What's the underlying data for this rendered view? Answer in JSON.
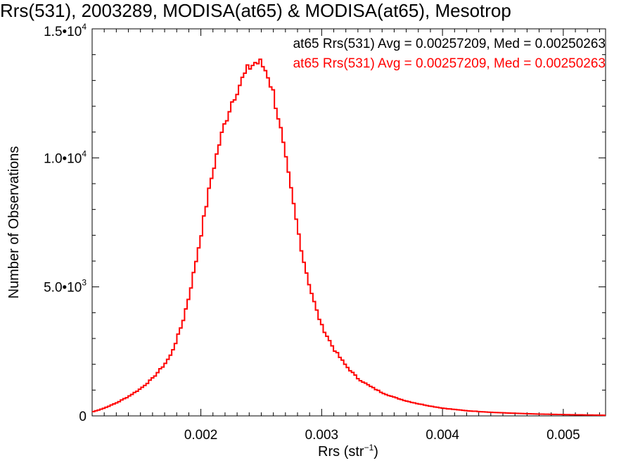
{
  "chart_data": {
    "type": "histogram-step",
    "title": "Rrs(531), 2003289, MODISA(at65) & MODISA(at65), Mesotrop",
    "xlabel": "Rrs (str",
    "xlabel_exp": "−1",
    "xlabel_suffix": ")",
    "ylabel": "Number of Observations",
    "xlim": [
      0.0011,
      0.00535
    ],
    "ylim": [
      0,
      15000
    ],
    "x_ticks": [
      {
        "value": 0.002,
        "label": "0.002"
      },
      {
        "value": 0.003,
        "label": "0.003"
      },
      {
        "value": 0.004,
        "label": "0.004"
      },
      {
        "value": 0.005,
        "label": "0.005"
      }
    ],
    "y_ticks": [
      {
        "value": 0,
        "mant": "0",
        "exp": ""
      },
      {
        "value": 5000,
        "mant": "5.0•10",
        "exp": "3"
      },
      {
        "value": 10000,
        "mant": "1.0•10",
        "exp": "4"
      },
      {
        "value": 15000,
        "mant": "1.5•10",
        "exp": "4"
      }
    ],
    "legend_position": "top-right",
    "series": [
      {
        "name": "at65 Rrs(531) Avg = 0.00257209, Med = 0.00250263",
        "color": "#000000"
      },
      {
        "name": "at65 Rrs(531) Avg = 0.00257209, Med = 0.00250263",
        "color": "#ff0000"
      }
    ],
    "x": [
      0.0011,
      0.0012,
      0.0013,
      0.0014,
      0.0015,
      0.0016,
      0.0017,
      0.00175,
      0.0018,
      0.00185,
      0.0019,
      0.00195,
      0.002,
      0.00205,
      0.0021,
      0.00215,
      0.0022,
      0.00225,
      0.0023,
      0.00235,
      0.0024,
      0.00245,
      0.0025,
      0.00255,
      0.0026,
      0.00265,
      0.0027,
      0.00275,
      0.0028,
      0.00285,
      0.0029,
      0.00295,
      0.003,
      0.0031,
      0.0032,
      0.0033,
      0.0034,
      0.0035,
      0.0036,
      0.0037,
      0.0038,
      0.0039,
      0.004,
      0.0042,
      0.0044,
      0.0046,
      0.0048,
      0.005,
      0.0052,
      0.00535
    ],
    "y": [
      150,
      300,
      500,
      750,
      1050,
      1450,
      2000,
      2350,
      2950,
      3650,
      4600,
      5750,
      7000,
      8300,
      9500,
      10500,
      11350,
      12100,
      12650,
      13100,
      13500,
      13700,
      13650,
      13300,
      12500,
      11400,
      10000,
      8650,
      7300,
      6050,
      5050,
      4200,
      3500,
      2600,
      1950,
      1450,
      1150,
      900,
      720,
      580,
      470,
      380,
      300,
      200,
      140,
      100,
      70,
      50,
      35,
      25
    ]
  }
}
